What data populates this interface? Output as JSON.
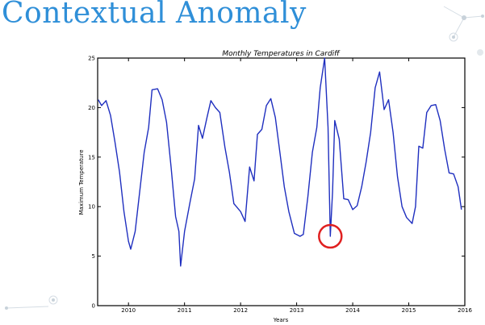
{
  "slide": {
    "title": "Contextual Anomaly"
  },
  "colors": {
    "title": "#2f8fd8",
    "line": "#1f2fbf",
    "anomaly_marker": "#e02020",
    "decoration": "#cfd8e0"
  },
  "chart_data": {
    "type": "line",
    "title": "Monthly Temperatures in Cardiff",
    "xlabel": "Years",
    "ylabel": "Maximum Temperature",
    "xlim": [
      2009.45,
      2016.0
    ],
    "ylim": [
      0,
      25
    ],
    "x_ticks": [
      2010,
      2011,
      2012,
      2013,
      2014,
      2015,
      2016
    ],
    "y_ticks": [
      0,
      5,
      10,
      15,
      20,
      25
    ],
    "grid": false,
    "series": [
      {
        "color": "#1f2fbf",
        "points": [
          [
            2009.46,
            20.8
          ],
          [
            2009.52,
            20.2
          ],
          [
            2009.6,
            20.7
          ],
          [
            2009.68,
            19.2
          ],
          [
            2009.76,
            16.5
          ],
          [
            2009.84,
            13.5
          ],
          [
            2009.92,
            9.5
          ],
          [
            2010.0,
            6.5
          ],
          [
            2010.04,
            5.7
          ],
          [
            2010.12,
            7.5
          ],
          [
            2010.2,
            11.5
          ],
          [
            2010.28,
            15.5
          ],
          [
            2010.36,
            18.0
          ],
          [
            2010.42,
            21.8
          ],
          [
            2010.52,
            21.9
          ],
          [
            2010.6,
            20.8
          ],
          [
            2010.68,
            18.5
          ],
          [
            2010.76,
            14.0
          ],
          [
            2010.84,
            9.0
          ],
          [
            2010.9,
            7.5
          ],
          [
            2010.93,
            4.0
          ],
          [
            2011.0,
            7.5
          ],
          [
            2011.1,
            10.5
          ],
          [
            2011.18,
            12.8
          ],
          [
            2011.25,
            18.2
          ],
          [
            2011.32,
            16.9
          ],
          [
            2011.4,
            19.0
          ],
          [
            2011.47,
            20.7
          ],
          [
            2011.55,
            20.0
          ],
          [
            2011.63,
            19.5
          ],
          [
            2011.72,
            16.0
          ],
          [
            2011.8,
            13.5
          ],
          [
            2011.88,
            10.3
          ],
          [
            2012.0,
            9.5
          ],
          [
            2012.08,
            8.5
          ],
          [
            2012.16,
            14.0
          ],
          [
            2012.24,
            12.6
          ],
          [
            2012.3,
            17.3
          ],
          [
            2012.38,
            17.8
          ],
          [
            2012.46,
            20.2
          ],
          [
            2012.54,
            20.9
          ],
          [
            2012.62,
            19.0
          ],
          [
            2012.7,
            15.5
          ],
          [
            2012.78,
            12.0
          ],
          [
            2012.86,
            9.5
          ],
          [
            2012.96,
            7.3
          ],
          [
            2013.06,
            7.0
          ],
          [
            2013.12,
            7.2
          ],
          [
            2013.2,
            11.0
          ],
          [
            2013.28,
            15.5
          ],
          [
            2013.36,
            18.0
          ],
          [
            2013.42,
            22.0
          ],
          [
            2013.5,
            25.0
          ],
          [
            2013.56,
            18.0
          ],
          [
            2013.6,
            7.0
          ],
          [
            2013.64,
            11.5
          ],
          [
            2013.68,
            18.7
          ],
          [
            2013.76,
            16.8
          ],
          [
            2013.84,
            10.8
          ],
          [
            2013.92,
            10.7
          ],
          [
            2014.0,
            9.7
          ],
          [
            2014.08,
            10.1
          ],
          [
            2014.16,
            12.0
          ],
          [
            2014.24,
            14.5
          ],
          [
            2014.32,
            17.5
          ],
          [
            2014.4,
            22.0
          ],
          [
            2014.48,
            23.6
          ],
          [
            2014.56,
            19.8
          ],
          [
            2014.64,
            20.8
          ],
          [
            2014.72,
            17.5
          ],
          [
            2014.8,
            13.0
          ],
          [
            2014.88,
            10.0
          ],
          [
            2014.96,
            8.9
          ],
          [
            2015.06,
            8.3
          ],
          [
            2015.12,
            10.0
          ],
          [
            2015.18,
            16.1
          ],
          [
            2015.25,
            15.9
          ],
          [
            2015.32,
            19.5
          ],
          [
            2015.4,
            20.2
          ],
          [
            2015.48,
            20.3
          ],
          [
            2015.56,
            18.7
          ],
          [
            2015.64,
            15.8
          ],
          [
            2015.72,
            13.4
          ],
          [
            2015.8,
            13.3
          ],
          [
            2015.88,
            12.0
          ],
          [
            2015.94,
            9.7
          ]
        ]
      }
    ],
    "annotation": {
      "type": "circle",
      "label": "",
      "x": 2013.6,
      "y": 7.0
    }
  }
}
